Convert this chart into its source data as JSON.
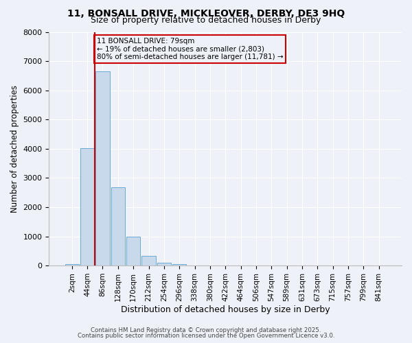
{
  "title_line1": "11, BONSALL DRIVE, MICKLEOVER, DERBY, DE3 9HQ",
  "title_line2": "Size of property relative to detached houses in Derby",
  "xlabel": "Distribution of detached houses by size in Derby",
  "ylabel": "Number of detached properties",
  "bar_labels": [
    "2sqm",
    "44sqm",
    "86sqm",
    "128sqm",
    "170sqm",
    "212sqm",
    "254sqm",
    "296sqm",
    "338sqm",
    "380sqm",
    "422sqm",
    "464sqm",
    "506sqm",
    "547sqm",
    "589sqm",
    "631sqm",
    "673sqm",
    "715sqm",
    "757sqm",
    "799sqm",
    "841sqm"
  ],
  "bar_values": [
    50,
    4030,
    6650,
    2680,
    980,
    330,
    100,
    50,
    0,
    0,
    0,
    0,
    0,
    0,
    0,
    0,
    0,
    0,
    0,
    0,
    0
  ],
  "bar_color": "#c8d9ec",
  "bar_edge_color": "#6aaad4",
  "ylim": [
    0,
    8000
  ],
  "yticks": [
    0,
    1000,
    2000,
    3000,
    4000,
    5000,
    6000,
    7000,
    8000
  ],
  "vline_color": "#cc0000",
  "annotation_title": "11 BONSALL DRIVE: 79sqm",
  "annotation_line1": "← 19% of detached houses are smaller (2,803)",
  "annotation_line2": "80% of semi-detached houses are larger (11,781) →",
  "annotation_box_color": "#cc0000",
  "bg_color": "#eef2f8",
  "grid_color": "#ffffff",
  "footnote1": "Contains HM Land Registry data © Crown copyright and database right 2025.",
  "footnote2": "Contains public sector information licensed under the Open Government Licence v3.0."
}
